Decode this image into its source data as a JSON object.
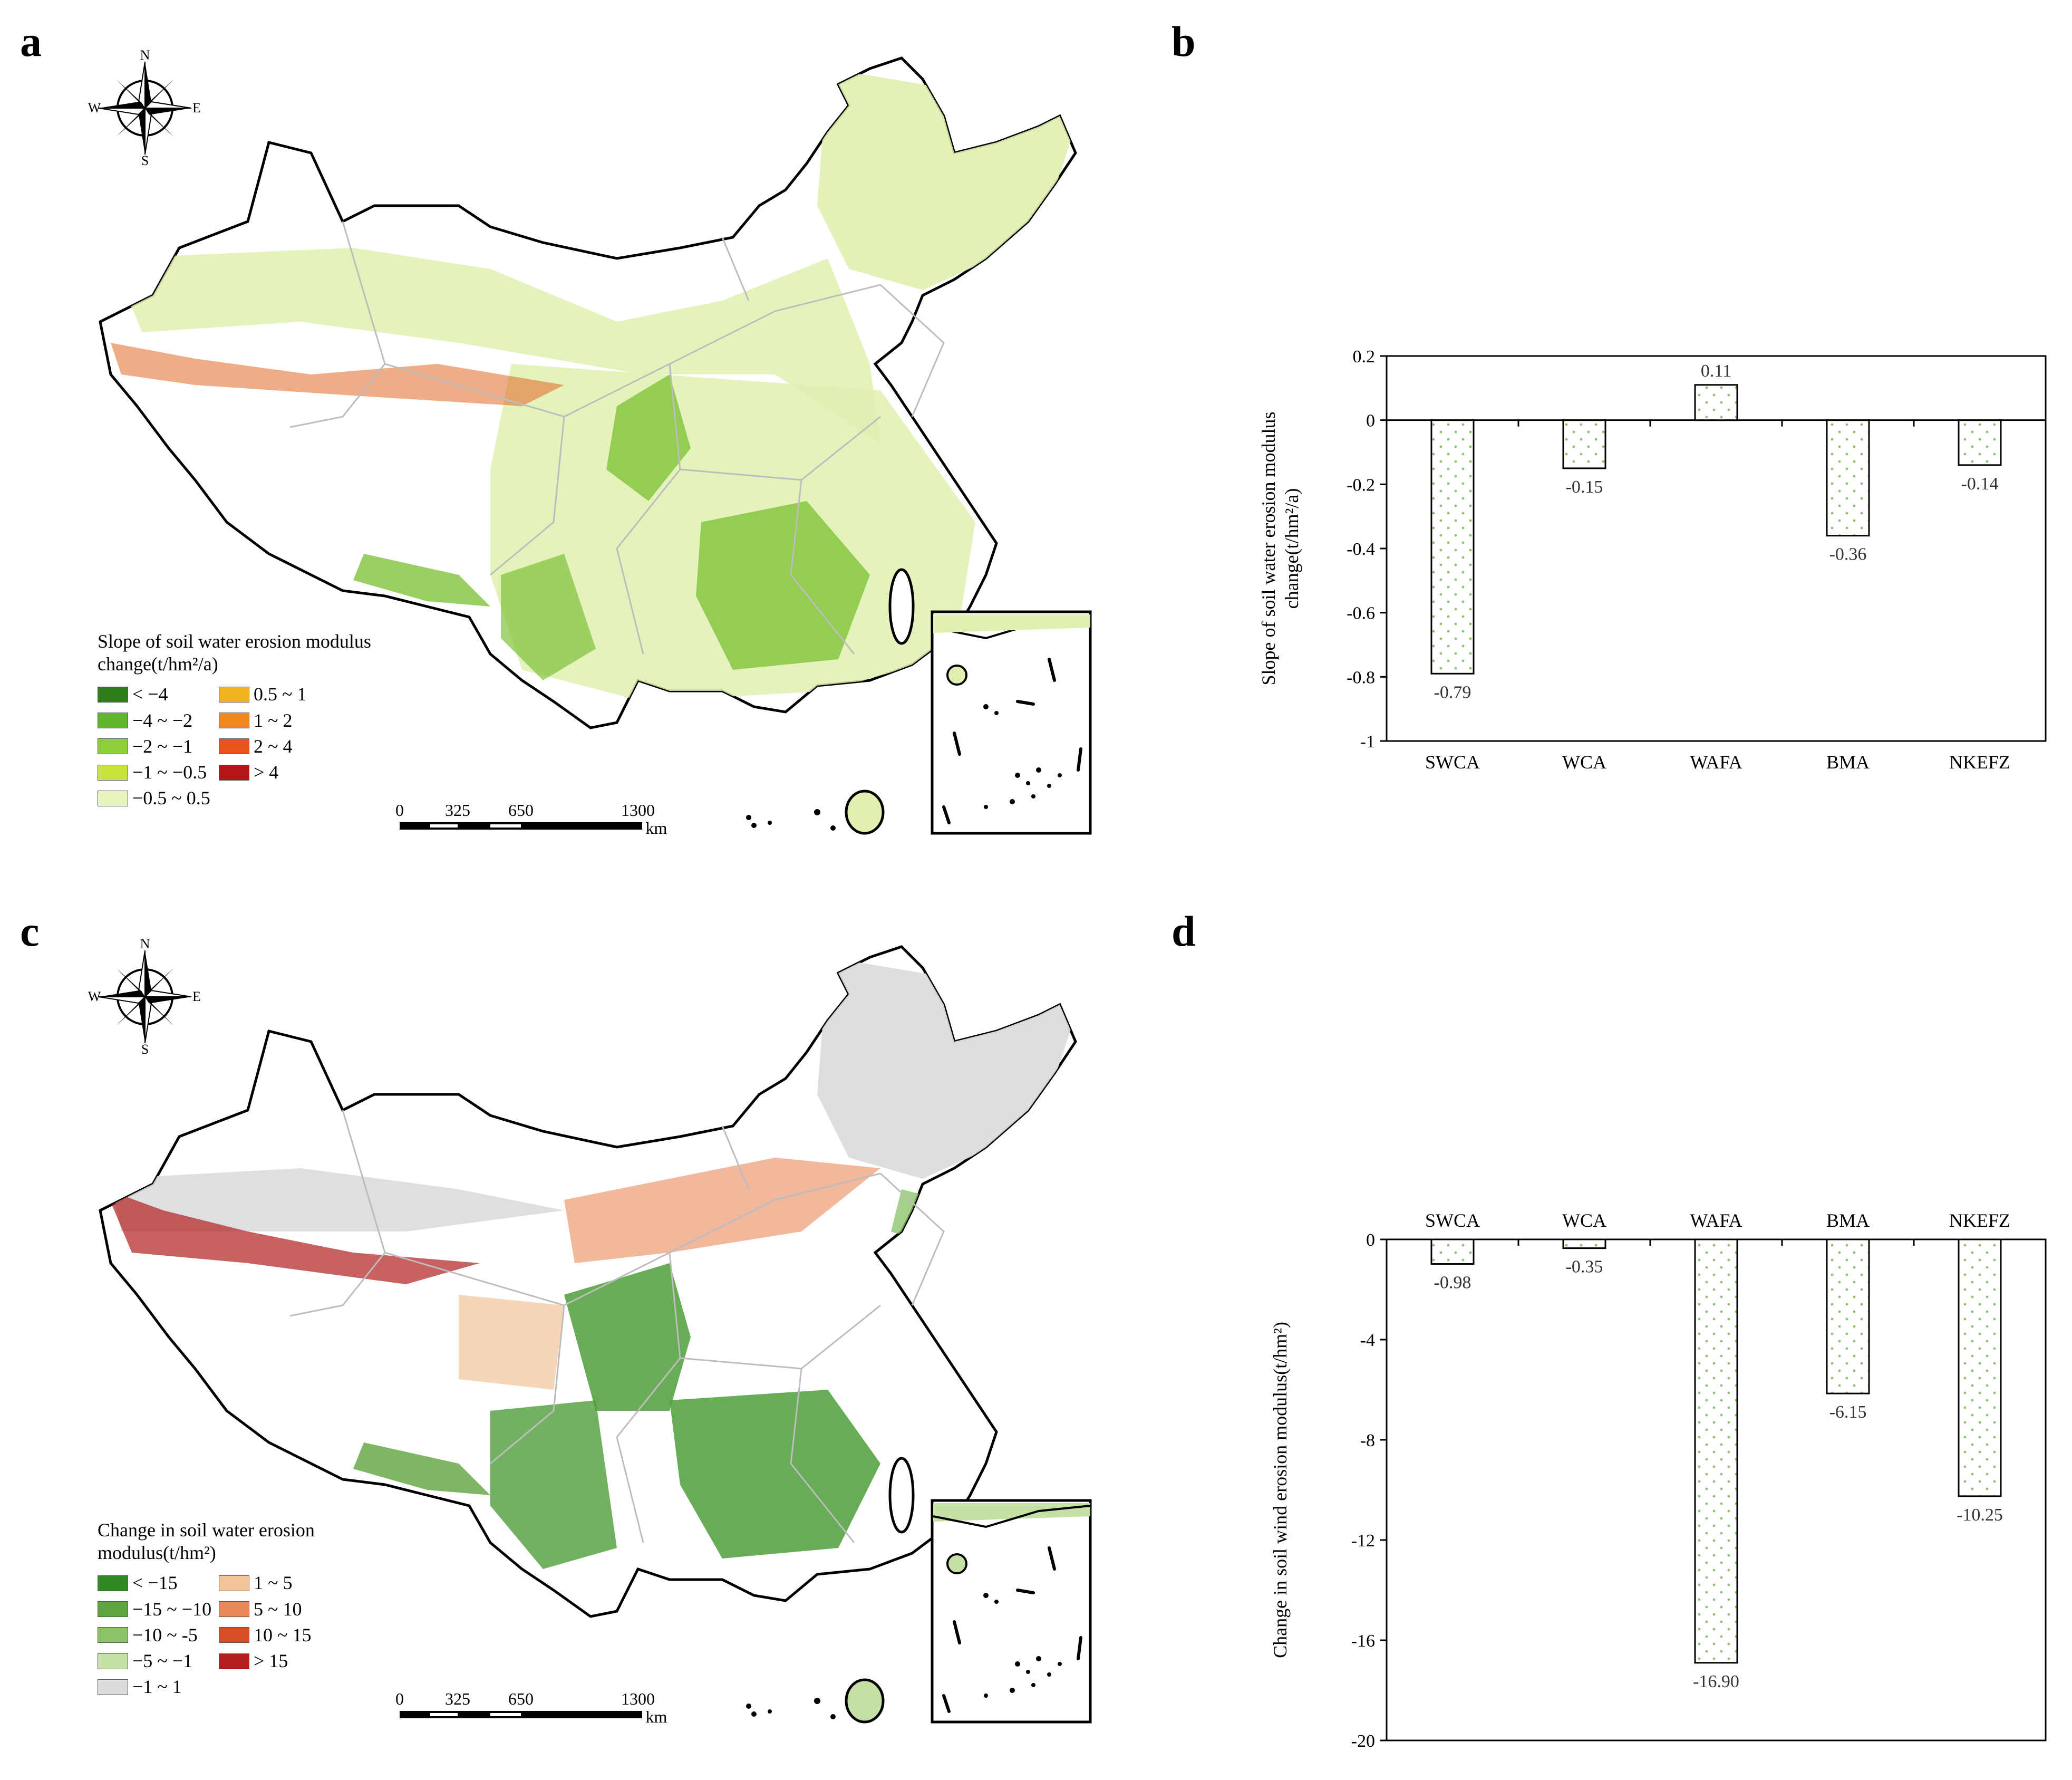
{
  "panels": {
    "a": "a",
    "b": "b",
    "c": "c",
    "d": "d"
  },
  "compass": {
    "n": "N",
    "s": "S",
    "e": "E",
    "w": "W"
  },
  "map_a": {
    "legend_title": "Slope of soil water erosion modulus change(t/hm²/a)",
    "legend_items": [
      {
        "label": "< −4",
        "color": "#2e7d1a"
      },
      {
        "label": "0.5 ~ 1",
        "color": "#f0b41c"
      },
      {
        "label": "−4 ~ −2",
        "color": "#5fb52e"
      },
      {
        "label": "1 ~ 2",
        "color": "#f08a1f"
      },
      {
        "label": "−2 ~ −1",
        "color": "#8fcf3a"
      },
      {
        "label": "2 ~ 4",
        "color": "#e8541c"
      },
      {
        "label": "−1 ~ −0.5",
        "color": "#c6e43c"
      },
      {
        "label": "> 4",
        "color": "#b3141a"
      },
      {
        "label": "−0.5 ~ 0.5",
        "color": "#e8f5c0"
      }
    ],
    "scale_ticks": [
      "0",
      "325",
      "650",
      "1300"
    ],
    "scale_unit": "km",
    "fill_color": "#dff0b0",
    "accent_color": "#7fc23a"
  },
  "map_c": {
    "legend_title": "Change in soil water erosion modulus(t/hm²)",
    "legend_items": [
      {
        "label": "< −15",
        "color": "#2f8a23"
      },
      {
        "label": "1 ~ 5",
        "color": "#f3c49a"
      },
      {
        "label": "−15 ~ −10",
        "color": "#5ea43f"
      },
      {
        "label": "5 ~ 10",
        "color": "#e8895a"
      },
      {
        "label": "−10 ~ -5",
        "color": "#8dc46b"
      },
      {
        "label": "10 ~ 15",
        "color": "#d94f2a"
      },
      {
        "label": "−5 ~ −1",
        "color": "#c4e0a4"
      },
      {
        "label": "> 15",
        "color": "#b01e1e"
      },
      {
        "label": "−1 ~ 1",
        "color": "#dcdcdc"
      }
    ],
    "scale_ticks": [
      "0",
      "325",
      "650",
      "1300"
    ],
    "scale_unit": "km",
    "fill_color": "#dcdcdc",
    "accent_color": "#4f9e3a"
  },
  "chart_data": [
    {
      "type": "bar",
      "panel": "b",
      "categories": [
        "SWCA",
        "WCA",
        "WAFA",
        "BMA",
        "NKEFZ"
      ],
      "values": [
        -0.79,
        -0.15,
        0.11,
        -0.36,
        -0.14
      ],
      "value_labels": [
        "-0.79",
        "-0.15",
        "0.11",
        "-0.36",
        "-0.14"
      ],
      "ylabel": "Slope of soil water erosion modulus change(t/hm²/a)",
      "ylim": [
        -1,
        0.2
      ],
      "yticks": [
        0.2,
        0,
        -0.2,
        -0.4,
        -0.6,
        -0.8,
        -1
      ],
      "ytick_labels": [
        "0.2",
        "0",
        "-0.2",
        "-0.4",
        "-0.6",
        "-0.8",
        "-1"
      ],
      "category_axis": "bottom"
    },
    {
      "type": "bar",
      "panel": "d",
      "categories": [
        "SWCA",
        "WCA",
        "WAFA",
        "BMA",
        "NKEFZ"
      ],
      "values": [
        -0.98,
        -0.35,
        -16.9,
        -6.15,
        -10.25
      ],
      "value_labels": [
        "-0.98",
        "-0.35",
        "-16.90",
        "-6.15",
        "-10.25"
      ],
      "ylabel": "Change in soil wind erosion modulus(t/hm²)",
      "ylim": [
        -20,
        0
      ],
      "yticks": [
        0,
        -4,
        -8,
        -12,
        -16,
        -20
      ],
      "ytick_labels": [
        "0",
        "-4",
        "-8",
        "-12",
        "-16",
        "-20"
      ],
      "category_axis": "top"
    }
  ]
}
